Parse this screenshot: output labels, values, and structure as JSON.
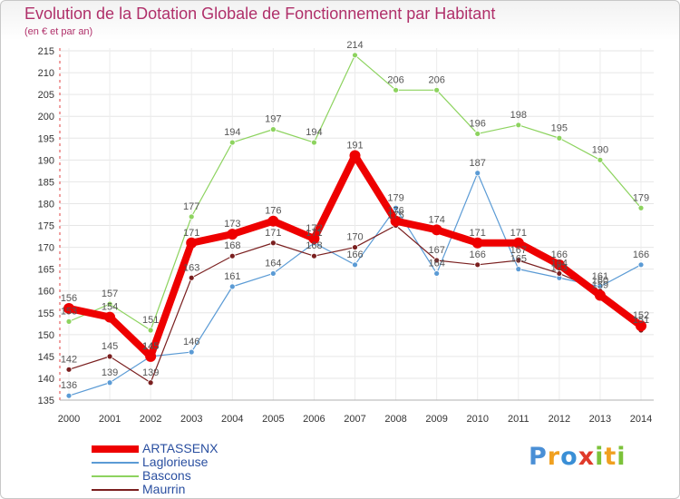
{
  "title": "Evolution de la Dotation Globale de Fonctionnement par Habitant",
  "subtitle": "(en € et par an)",
  "logo": {
    "text": "Proxiti",
    "letters": [
      "P",
      "r",
      "o",
      "x",
      "i",
      "t",
      "i"
    ],
    "colors": [
      "#4a8fd6",
      "#f0a020",
      "#3a8fd6",
      "#e03a2a",
      "#7cc23a",
      "#f0a020",
      "#7cc23a"
    ]
  },
  "chart_data": {
    "type": "line",
    "title": "Evolution de la Dotation Globale de Fonctionnement par Habitant",
    "subtitle": "(en € et par an)",
    "xlabel": "",
    "ylabel": "",
    "categories": [
      "2000",
      "2001",
      "2002",
      "2003",
      "2004",
      "2005",
      "2006",
      "2007",
      "2008",
      "2009",
      "2010",
      "2011",
      "2012",
      "2013",
      "2014"
    ],
    "ylim": [
      135,
      215
    ],
    "yticks": [
      135,
      140,
      145,
      150,
      155,
      160,
      165,
      170,
      175,
      180,
      185,
      190,
      195,
      200,
      205,
      210,
      215
    ],
    "grid": true,
    "legend_position": "bottom-left",
    "series": [
      {
        "name": "Laglorieuse",
        "color": "#5b9bd5",
        "width": 1.2,
        "marker": 3,
        "values": [
          136,
          139,
          145,
          146,
          161,
          164,
          171,
          166,
          179,
          164,
          187,
          165,
          163,
          161,
          166
        ],
        "labels": [
          "136",
          "139",
          "145",
          "146",
          "161",
          "164",
          "171",
          "166",
          "179",
          "164",
          "187",
          "165",
          "163",
          "161",
          "166"
        ]
      },
      {
        "name": "Bascons",
        "color": "#8dd35f",
        "width": 1.2,
        "marker": 3,
        "values": [
          153,
          157,
          151,
          177,
          194,
          197,
          194,
          214,
          206,
          206,
          196,
          198,
          195,
          190,
          179
        ],
        "labels": [
          "153",
          "157",
          "151",
          "177",
          "194",
          "197",
          "194",
          "214",
          "206",
          "206",
          "196",
          "198",
          "195",
          "190",
          "179"
        ]
      },
      {
        "name": "Maurrin",
        "color": "#7a1f1f",
        "width": 1.2,
        "marker": 3,
        "values": [
          142,
          145,
          139,
          163,
          168,
          171,
          168,
          170,
          175,
          167,
          166,
          167,
          164,
          160,
          151
        ],
        "labels": [
          "142",
          "145",
          "139",
          "163",
          "168",
          "171",
          "168",
          "170",
          "175",
          "167",
          "166",
          "167",
          "164",
          "160",
          "151"
        ]
      },
      {
        "name": "ARTASSENX",
        "color": "#ee0000",
        "width": 8,
        "marker": 6,
        "values": [
          156,
          154,
          145,
          171,
          173,
          176,
          172,
          191,
          176,
          174,
          171,
          171,
          166,
          159,
          152
        ],
        "labels": [
          "156",
          "154",
          "145",
          "171",
          "173",
          "176",
          "172",
          "191",
          "176",
          "174",
          "171",
          "171",
          "166",
          "159",
          "152"
        ]
      }
    ],
    "legend_order": [
      "ARTASSENX",
      "Laglorieuse",
      "Bascons",
      "Maurrin"
    ]
  }
}
